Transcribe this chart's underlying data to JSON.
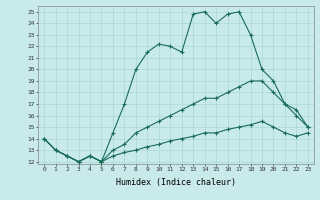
{
  "xlabel": "Humidex (Indice chaleur)",
  "bg_color": "#c8eaea",
  "grid_color": "#a8d8d8",
  "line_color": "#1a6b5a",
  "xlim": [
    -0.5,
    23.5
  ],
  "ylim": [
    11.8,
    25.5
  ],
  "yticks": [
    12,
    13,
    14,
    15,
    16,
    17,
    18,
    19,
    20,
    21,
    22,
    23,
    24,
    25
  ],
  "xticks": [
    0,
    1,
    2,
    3,
    4,
    5,
    6,
    7,
    8,
    9,
    10,
    11,
    12,
    13,
    14,
    15,
    16,
    17,
    18,
    19,
    20,
    21,
    22,
    23
  ],
  "line1_x": [
    0,
    1,
    2,
    3,
    4,
    5,
    6,
    7,
    8,
    9,
    10,
    11,
    12,
    13,
    14,
    15,
    16,
    17,
    18,
    19,
    20,
    21,
    22,
    23
  ],
  "line1_y": [
    14,
    13,
    12.5,
    12,
    12.5,
    12,
    14.5,
    17,
    20,
    21.5,
    22.2,
    22,
    21.5,
    24.8,
    25,
    24,
    24.8,
    25,
    23,
    20,
    19,
    17,
    16,
    15
  ],
  "line2_x": [
    0,
    1,
    2,
    3,
    4,
    5,
    6,
    7,
    8,
    9,
    10,
    11,
    12,
    13,
    14,
    15,
    16,
    17,
    18,
    19,
    20,
    21,
    22,
    23
  ],
  "line2_y": [
    14,
    13,
    12.5,
    12,
    12.5,
    12,
    13,
    13.5,
    14.5,
    15,
    15.5,
    16,
    16.5,
    17,
    17.5,
    17.5,
    18,
    18.5,
    19,
    19,
    18,
    17,
    16.5,
    15
  ],
  "line3_x": [
    0,
    1,
    2,
    3,
    4,
    5,
    6,
    7,
    8,
    9,
    10,
    11,
    12,
    13,
    14,
    15,
    16,
    17,
    18,
    19,
    20,
    21,
    22,
    23
  ],
  "line3_y": [
    14,
    13,
    12.5,
    12,
    12.5,
    12,
    12.5,
    12.8,
    13,
    13.3,
    13.5,
    13.8,
    14,
    14.2,
    14.5,
    14.5,
    14.8,
    15,
    15.2,
    15.5,
    15,
    14.5,
    14.2,
    14.5
  ]
}
